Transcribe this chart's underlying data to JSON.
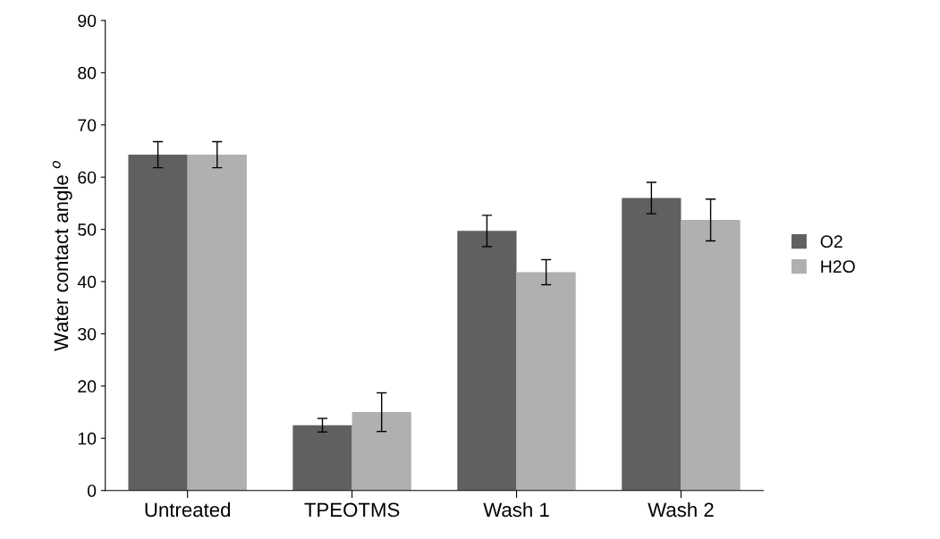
{
  "chart_data": {
    "type": "bar",
    "ylabel": "Water contact angle $^{o}$",
    "categories": [
      "Untreated",
      "TPEOTMS",
      "Wash 1",
      "Wash 2"
    ],
    "series": [
      {
        "name": "O2",
        "color": "#606060",
        "values": [
          64.3,
          12.5,
          49.7,
          56.0
        ],
        "errors": [
          2.5,
          1.3,
          3.0,
          3.0
        ]
      },
      {
        "name": "H2O",
        "color": "#b0b0b0",
        "values": [
          64.3,
          15.0,
          41.8,
          51.8
        ],
        "errors": [
          2.5,
          3.7,
          2.4,
          4.0
        ]
      }
    ],
    "ylim": [
      0,
      90
    ],
    "yticks": [
      0,
      10,
      20,
      30,
      40,
      50,
      60,
      70,
      80,
      90
    ],
    "grid": false,
    "legend": "right"
  }
}
